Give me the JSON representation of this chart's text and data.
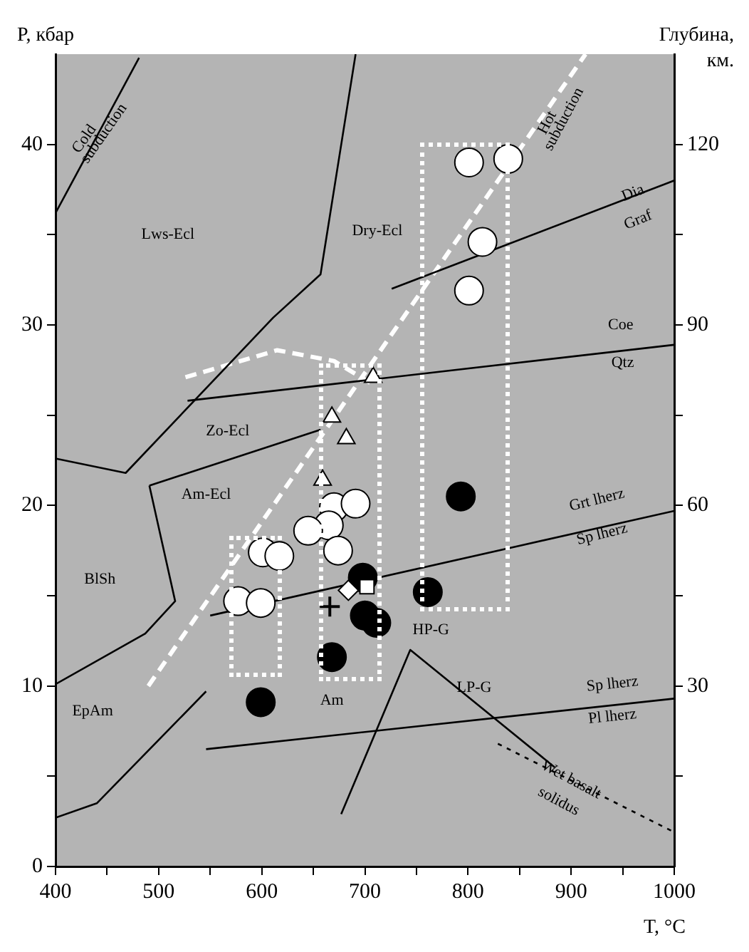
{
  "chart_data": {
    "type": "scatter",
    "xlabel": "T, °C",
    "ylabel": "P, кбар",
    "y2label": "Глубина, км.",
    "xlim": [
      400,
      1000
    ],
    "xticks": [
      400,
      {
        "value": 450,
        "label": null
      },
      500,
      {
        "value": 550,
        "label": null
      },
      600,
      {
        "value": 650,
        "label": null
      },
      700,
      {
        "value": 750,
        "label": null
      },
      800,
      {
        "value": 850,
        "label": null
      },
      900,
      {
        "value": 950,
        "label": null
      },
      1000
    ],
    "ylim": [
      0,
      45
    ],
    "yticks": [
      0,
      {
        "value": 5,
        "label": null
      },
      10,
      {
        "value": 15,
        "label": null
      },
      20,
      {
        "value": 25,
        "label": null
      },
      30,
      {
        "value": 35,
        "label": null
      },
      40
    ],
    "y2lim": [
      0,
      135
    ],
    "y2ticks": [
      {
        "value": 15,
        "label": null
      },
      30,
      {
        "value": 45,
        "label": null
      },
      60,
      {
        "value": 75,
        "label": null
      },
      90,
      {
        "value": 105,
        "label": null
      },
      120
    ],
    "grid": false,
    "legend": false,
    "series": [
      {
        "type": "line",
        "color": "#000000",
        "line_style": "solid",
        "marker": "none",
        "x": [
          400,
          468,
          611,
          657,
          691
        ],
        "values": [
          22.6,
          21.8,
          30.4,
          32.8,
          45
        ]
      },
      {
        "type": "line",
        "color": "#000000",
        "line_style": "solid",
        "marker": "none",
        "x": [
          491,
          657
        ],
        "values": [
          21.1,
          24.2
        ]
      },
      {
        "type": "line",
        "color": "#000000",
        "line_style": "solid",
        "marker": "none",
        "x": [
          400,
          487,
          516,
          491
        ],
        "values": [
          10.1,
          12.9,
          14.7,
          21.1
        ]
      },
      {
        "type": "line",
        "color": "#000000",
        "line_style": "solid",
        "marker": "none",
        "x": [
          400,
          440,
          546
        ],
        "values": [
          2.7,
          3.5,
          9.7
        ]
      },
      {
        "type": "line",
        "color": "#000000",
        "line_style": "solid",
        "marker": "none",
        "x": [
          677,
          744,
          884
        ],
        "values": [
          2.9,
          12,
          5.5
        ]
      },
      {
        "type": "line",
        "color": "#000000",
        "line_style": "solid",
        "marker": "none",
        "x": [
          726,
          1000
        ],
        "values": [
          32,
          38
        ]
      },
      {
        "type": "line",
        "color": "#000000",
        "line_style": "solid",
        "marker": "none",
        "x": [
          528,
          1000
        ],
        "values": [
          25.8,
          28.9
        ]
      },
      {
        "type": "line",
        "color": "#000000",
        "line_style": "solid",
        "marker": "none",
        "x": [
          550,
          1000
        ],
        "values": [
          13.9,
          19.7
        ]
      },
      {
        "type": "line",
        "color": "#000000",
        "line_style": "solid",
        "marker": "none",
        "x": [
          546,
          1000
        ],
        "values": [
          6.5,
          9.3
        ]
      },
      {
        "type": "line",
        "color": "#000000",
        "line_style": "dotted",
        "marker": "none",
        "x": [
          829,
          1000
        ],
        "values": [
          6.8,
          1.9
        ]
      },
      {
        "type": "line",
        "color": "#000000",
        "line_style": "solid",
        "marker": "none",
        "x": [
          400,
          481
        ],
        "values": [
          36.2,
          44.8
        ]
      },
      {
        "type": "line",
        "color": "#ffffff",
        "line_style": "dashed",
        "marker": "none",
        "x": [
          490,
          914
        ],
        "values": [
          10,
          45
        ]
      },
      {
        "type": "line",
        "color": "#ffffff",
        "line_style": "dashed",
        "marker": "none",
        "x": [
          526,
          615,
          670,
          705
        ],
        "values": [
          27.1,
          28.6,
          28,
          26.8
        ]
      },
      {
        "type": "scatter",
        "color": "#ffffff",
        "marker": "circle",
        "x": [
          801,
          839,
          814,
          801,
          670,
          691,
          665,
          645,
          674,
          601,
          617,
          577,
          599
        ],
        "values": [
          39,
          39.2,
          34.6,
          31.9,
          19.9,
          20.1,
          18.9,
          18.6,
          17.5,
          17.4,
          17.2,
          14.7,
          14.6
        ]
      },
      {
        "type": "scatter",
        "color": "#000000",
        "marker": "circle",
        "x": [
          793,
          761,
          698,
          700,
          711,
          668,
          599
        ],
        "values": [
          20.5,
          15.2,
          16,
          13.9,
          13.5,
          11.6,
          9.1
        ]
      },
      {
        "type": "scatter",
        "color": "#ffffff",
        "marker": "triangle",
        "x": [
          708,
          668,
          682,
          659
        ],
        "values": [
          27.1,
          24.9,
          23.7,
          21.4
        ]
      },
      {
        "type": "scatter",
        "color": "#ffffff",
        "marker": "square",
        "x": [
          702
        ],
        "values": [
          15.5
        ]
      },
      {
        "type": "scatter",
        "color": "#ffffff",
        "marker": "diamond",
        "x": [
          684
        ],
        "values": [
          15.3
        ]
      },
      {
        "type": "scatter",
        "color": "#000000",
        "marker": "cross",
        "x": [
          666
        ],
        "values": [
          14.4
        ]
      }
    ],
    "annotations": [
      "Lws-Ecl",
      "Dry-Ecl",
      "Zo-Ecl",
      "Am-Ecl",
      "BlSh",
      "EpAm",
      "Am",
      "HP-G",
      "LP-G",
      "Dia",
      "Graf",
      "Coe",
      "Qtz",
      "Grt lherz",
      "Sp lherz",
      "Sp lherz",
      "Pl lherz",
      "Wet basalt",
      "solidus",
      "Cold",
      "subduction",
      "Hot",
      "subduction"
    ]
  }
}
